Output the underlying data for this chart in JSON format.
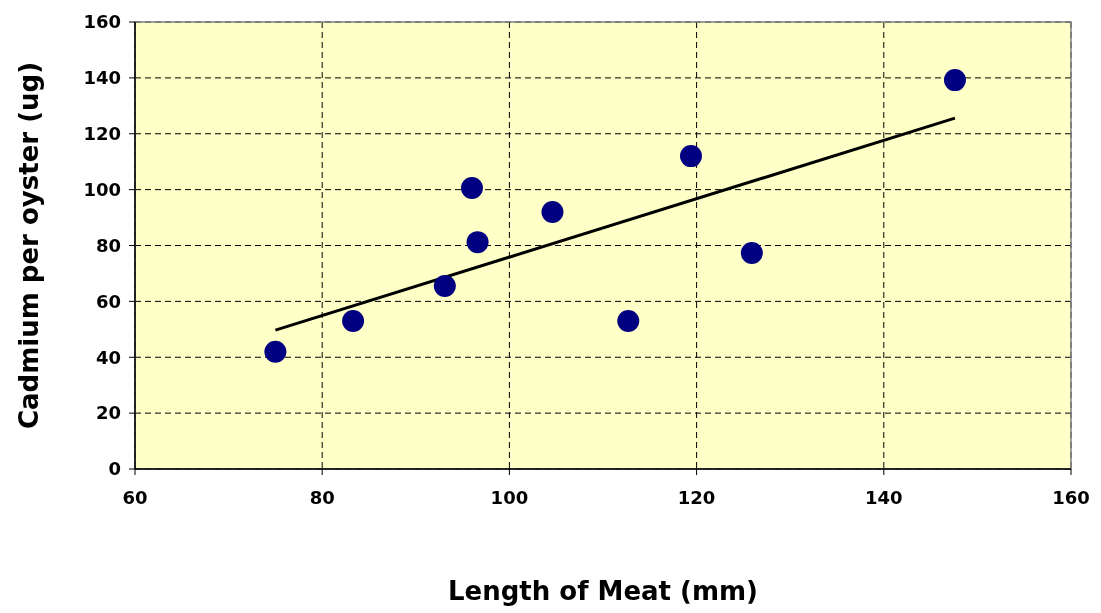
{
  "chart_data": {
    "type": "scatter",
    "xlabel": "Length of Meat (mm)",
    "ylabel": "Cadmium per oyster (ug)",
    "xlim": [
      60,
      160
    ],
    "xticks": [
      60,
      80,
      100,
      120,
      140,
      160
    ],
    "ylim": [
      0,
      160
    ],
    "yticks": [
      0,
      20,
      40,
      60,
      80,
      100,
      120,
      140,
      160
    ],
    "grid": true,
    "marker": "circle",
    "series": [
      {
        "color": "#000080",
        "x": [
          75,
          83.3,
          93.1,
          96,
          96.6,
          104.6,
          112.7,
          119.4,
          125.9,
          147.6
        ],
        "values": [
          42,
          53,
          65.5,
          100.6,
          81.2,
          92,
          53,
          112,
          77.3,
          139.2
        ]
      },
      {
        "type": "line",
        "marker": "none",
        "color": "#000000",
        "x": [
          75,
          147.6
        ],
        "values": [
          49.7,
          125.6
        ]
      }
    ]
  }
}
